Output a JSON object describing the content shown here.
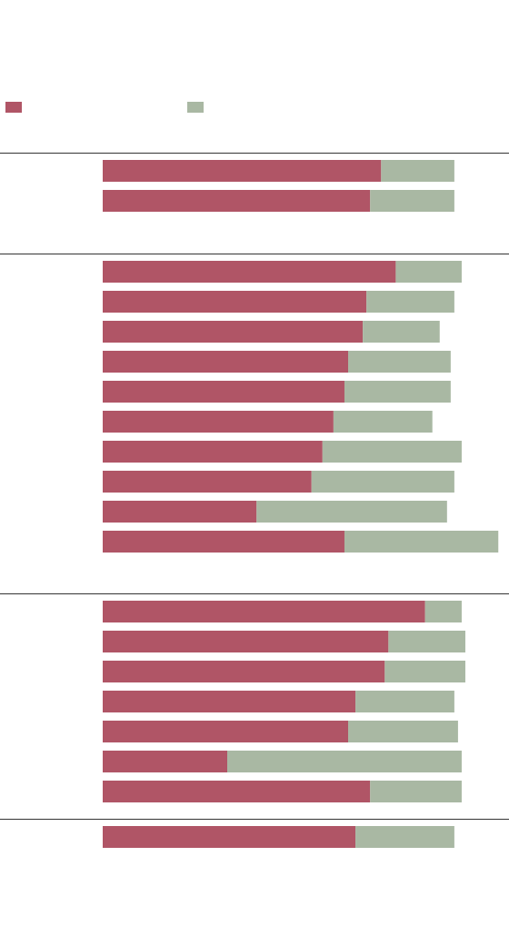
{
  "colors": {
    "series_a": "#b05566",
    "series_b": "#a9b8a3",
    "divider": "#333333"
  },
  "chart_data": {
    "type": "bar",
    "orientation": "horizontal",
    "stacked": true,
    "title": "",
    "xlabel": "",
    "ylabel": "",
    "legend": "top-left",
    "grid": false,
    "series": [
      {
        "name": ""
      },
      {
        "name": ""
      }
    ],
    "groups": [
      {
        "label": "",
        "rows": [
          {
            "label": "",
            "values": [
              76,
              20
            ]
          },
          {
            "label": "",
            "values": [
              73,
              23
            ]
          }
        ]
      },
      {
        "label": "",
        "rows": [
          {
            "label": "",
            "values": [
              80,
              18
            ]
          },
          {
            "label": "",
            "values": [
              72,
              24
            ]
          },
          {
            "label": "",
            "values": [
              71,
              21
            ]
          },
          {
            "label": "",
            "values": [
              67,
              28
            ]
          },
          {
            "label": "",
            "values": [
              66,
              29
            ]
          },
          {
            "label": "",
            "values": [
              63,
              27
            ]
          },
          {
            "label": "",
            "values": [
              60,
              38
            ]
          },
          {
            "label": "",
            "values": [
              57,
              39
            ]
          },
          {
            "label": "",
            "values": [
              42,
              52
            ]
          },
          {
            "label": "",
            "values": [
              66,
              42
            ]
          }
        ]
      },
      {
        "label": "",
        "rows": [
          {
            "label": "",
            "values": [
              88,
              10
            ]
          },
          {
            "label": "",
            "values": [
              78,
              21
            ]
          },
          {
            "label": "",
            "values": [
              77,
              22
            ]
          },
          {
            "label": "",
            "values": [
              69,
              27
            ]
          },
          {
            "label": "",
            "values": [
              67,
              30
            ]
          },
          {
            "label": "",
            "values": [
              34,
              64
            ]
          },
          {
            "label": "",
            "values": [
              73,
              25
            ]
          }
        ]
      },
      {
        "label": "",
        "rows": [
          {
            "label": "",
            "values": [
              69,
              27
            ]
          }
        ]
      }
    ]
  }
}
